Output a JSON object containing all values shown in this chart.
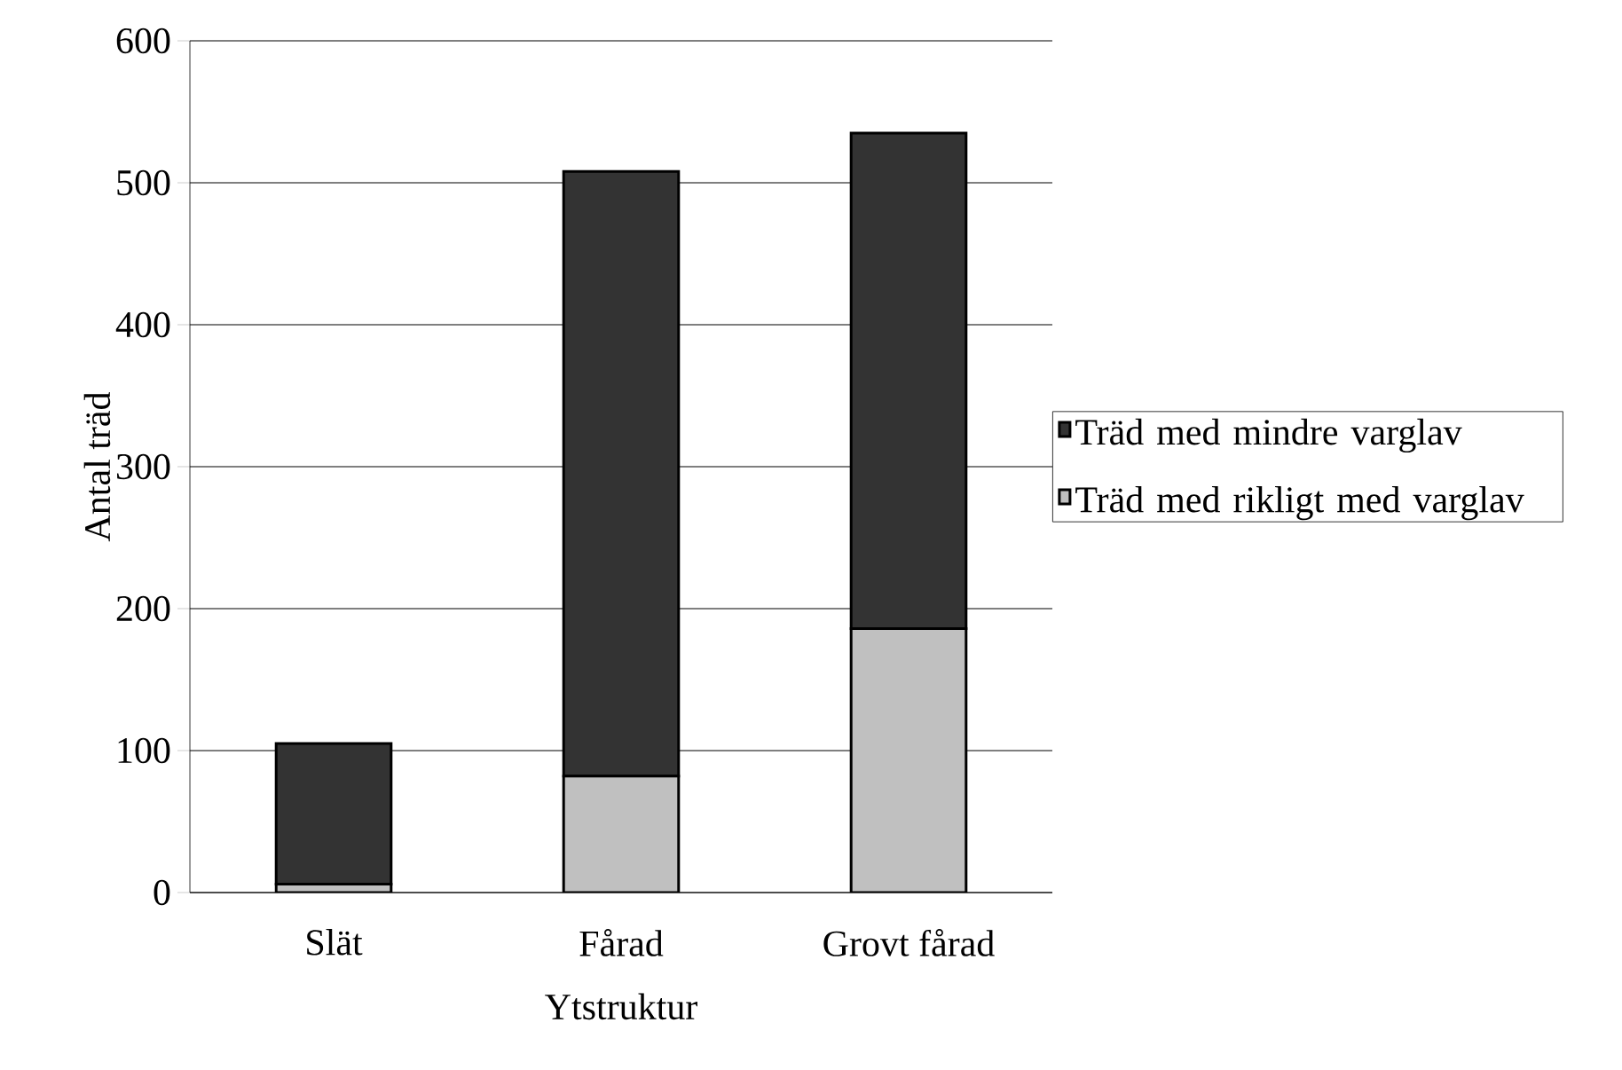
{
  "chart_data": {
    "type": "bar",
    "stacked": true,
    "xlabel": "Ytstruktur",
    "ylabel": "Antal träd",
    "categories": [
      "Slät",
      "Fårad",
      "Grovt fårad"
    ],
    "series": [
      {
        "name": "Träd med rikligt med varglav",
        "color": "#c0c0c0",
        "values": [
          6,
          82,
          186
        ]
      },
      {
        "name": "Träd med mindre varglav",
        "color": "#333333",
        "values": [
          99,
          426,
          349
        ]
      }
    ],
    "ylim": [
      0,
      600
    ],
    "yticks": [
      0,
      100,
      200,
      300,
      400,
      500,
      600
    ],
    "grid": "y",
    "legend": "right"
  }
}
